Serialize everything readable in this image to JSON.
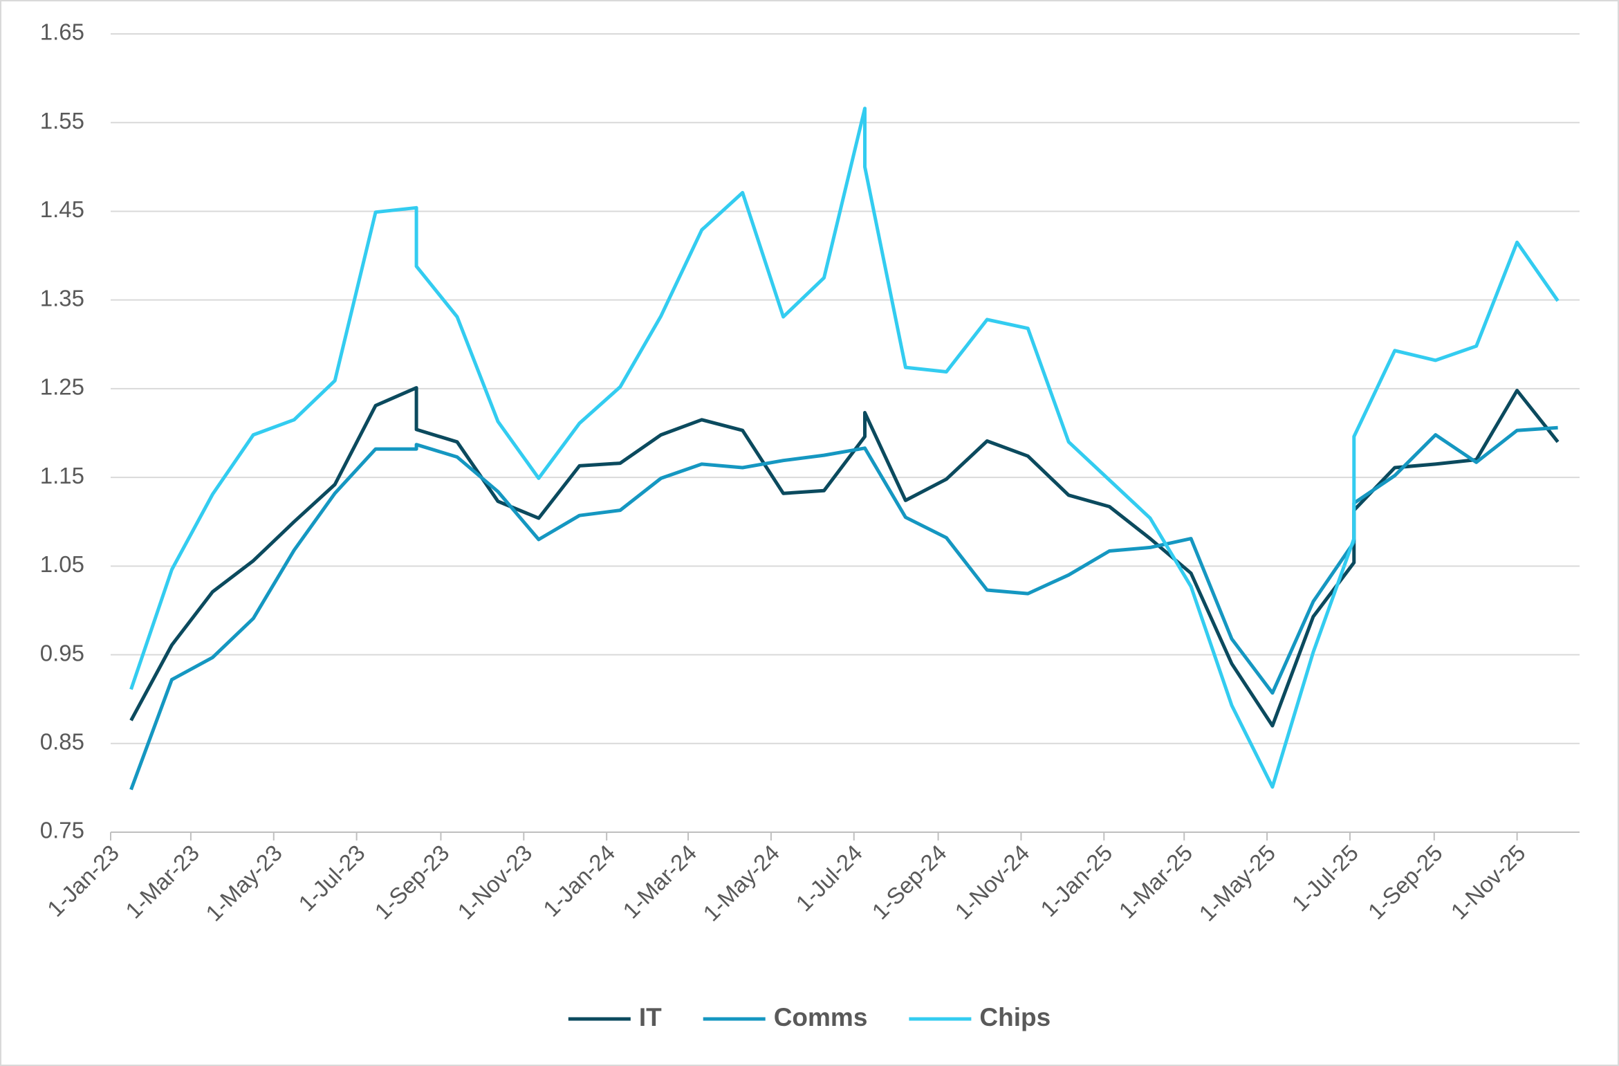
{
  "chart_data": {
    "type": "line",
    "x": [
      "2023-01-16",
      "2023-02-15",
      "2023-03-17",
      "2023-04-16",
      "2023-05-16",
      "2023-06-15",
      "2023-07-15",
      "2023-08-14",
      "2023-08-14",
      "2023-09-13",
      "2023-10-13",
      "2023-11-12",
      "2023-12-12",
      "2024-01-11",
      "2024-02-10",
      "2024-03-11",
      "2024-04-10",
      "2024-05-10",
      "2024-06-09",
      "2024-07-09",
      "2024-07-09",
      "2024-08-08",
      "2024-09-07",
      "2024-10-07",
      "2024-11-06",
      "2024-12-06",
      "2025-01-05",
      "2025-02-04",
      "2025-03-06",
      "2025-04-05",
      "2025-05-05",
      "2025-06-04",
      "2025-07-04",
      "2025-07-04",
      "2025-08-03",
      "2025-09-02",
      "2025-10-02",
      "2025-11-01",
      "2025-12-01"
    ],
    "series": [
      {
        "name": "IT",
        "color": "#0b4a5e",
        "values": [
          0.876,
          0.961,
          1.021,
          1.056,
          1.1,
          1.142,
          1.231,
          1.251,
          1.204,
          1.19,
          1.123,
          1.104,
          1.163,
          1.166,
          1.198,
          1.215,
          1.203,
          1.132,
          1.135,
          1.196,
          1.223,
          1.124,
          1.148,
          1.191,
          1.174,
          1.13,
          1.117,
          1.081,
          1.042,
          0.94,
          0.87,
          0.993,
          1.054,
          1.113,
          1.161,
          1.165,
          1.17,
          1.248,
          1.19
        ]
      },
      {
        "name": "Comms",
        "color": "#1597c1",
        "values": [
          0.798,
          0.922,
          0.947,
          0.991,
          1.068,
          1.132,
          1.182,
          1.182,
          1.187,
          1.173,
          1.134,
          1.08,
          1.107,
          1.113,
          1.149,
          1.165,
          1.161,
          1.169,
          1.175,
          1.183,
          1.183,
          1.105,
          1.082,
          1.023,
          1.019,
          1.04,
          1.067,
          1.071,
          1.081,
          0.968,
          0.907,
          1.01,
          1.077,
          1.121,
          1.152,
          1.198,
          1.167,
          1.203,
          1.206
        ]
      },
      {
        "name": "Chips",
        "color": "#33ccf0",
        "values": [
          0.911,
          1.046,
          1.131,
          1.198,
          1.215,
          1.259,
          1.449,
          1.454,
          1.388,
          1.331,
          1.213,
          1.149,
          1.211,
          1.252,
          1.332,
          1.429,
          1.471,
          1.331,
          1.375,
          1.566,
          1.5,
          1.274,
          1.269,
          1.328,
          1.318,
          1.19,
          1.147,
          1.104,
          1.027,
          0.893,
          0.801,
          0.953,
          1.081,
          1.196,
          1.293,
          1.282,
          1.298,
          1.415,
          1.349
        ]
      }
    ],
    "xlim": [
      "2023-01-01",
      "2025-12-17"
    ],
    "xticks": [
      {
        "value": "2023-01-01",
        "label": "1-Jan-23"
      },
      {
        "value": "2023-03-01",
        "label": "1-Mar-23"
      },
      {
        "value": "2023-05-01",
        "label": "1-May-23"
      },
      {
        "value": "2023-07-01",
        "label": "1-Jul-23"
      },
      {
        "value": "2023-09-01",
        "label": "1-Sep-23"
      },
      {
        "value": "2023-11-01",
        "label": "1-Nov-23"
      },
      {
        "value": "2024-01-01",
        "label": "1-Jan-24"
      },
      {
        "value": "2024-03-01",
        "label": "1-Mar-24"
      },
      {
        "value": "2024-05-01",
        "label": "1-May-24"
      },
      {
        "value": "2024-07-01",
        "label": "1-Jul-24"
      },
      {
        "value": "2024-09-01",
        "label": "1-Sep-24"
      },
      {
        "value": "2024-11-01",
        "label": "1-Nov-24"
      },
      {
        "value": "2025-01-01",
        "label": "1-Jan-25"
      },
      {
        "value": "2025-03-01",
        "label": "1-Mar-25"
      },
      {
        "value": "2025-05-01",
        "label": "1-May-25"
      },
      {
        "value": "2025-07-01",
        "label": "1-Jul-25"
      },
      {
        "value": "2025-09-01",
        "label": "1-Sep-25"
      },
      {
        "value": "2025-11-01",
        "label": "1-Nov-25"
      }
    ],
    "ylim": [
      0.75,
      1.65
    ],
    "yticks": [
      0.75,
      0.85,
      0.95,
      1.05,
      1.15,
      1.25,
      1.35,
      1.45,
      1.55,
      1.65
    ],
    "grid": true,
    "legend": "bottom"
  }
}
